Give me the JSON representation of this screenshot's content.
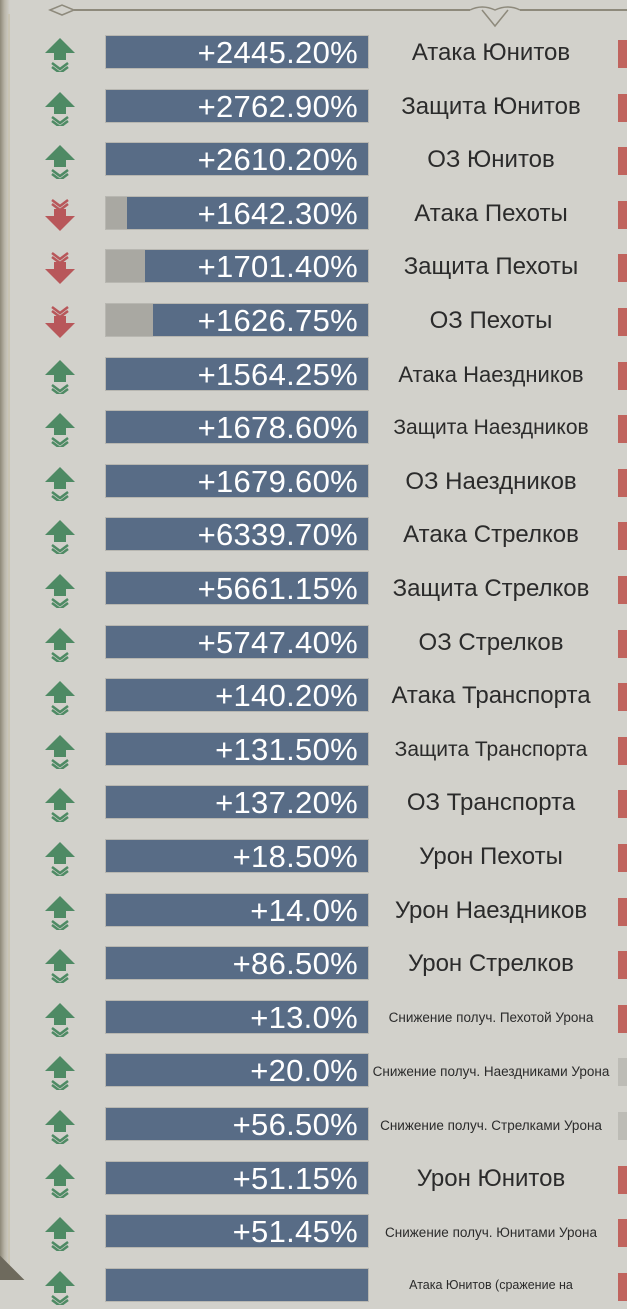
{
  "colors": {
    "background": "#d2d1cb",
    "bar_fill": "#586c86",
    "bar_track": "#a9a8a2",
    "arrow_up": "#4e8a64",
    "arrow_down": "#b8575a",
    "edge_marker": "#c0645e"
  },
  "stats": [
    {
      "value": "+2445.20%",
      "label": "Атака Юнитов",
      "trend": "up",
      "fill": 1.0
    },
    {
      "value": "+2762.90%",
      "label": "Защита Юнитов",
      "trend": "up",
      "fill": 1.0
    },
    {
      "value": "+2610.20%",
      "label": "ОЗ Юнитов",
      "trend": "up",
      "fill": 1.0
    },
    {
      "value": "+1642.30%",
      "label": "Атака Пехоты",
      "trend": "down",
      "fill": 0.92
    },
    {
      "value": "+1701.40%",
      "label": "Защита Пехоты",
      "trend": "down",
      "fill": 0.85
    },
    {
      "value": "+1626.75%",
      "label": "ОЗ Пехоты",
      "trend": "down",
      "fill": 0.82
    },
    {
      "value": "+1564.25%",
      "label": "Атака Наездников",
      "trend": "up",
      "fill": 1.0
    },
    {
      "value": "+1678.60%",
      "label": "Защита Наездников",
      "trend": "up",
      "fill": 1.0
    },
    {
      "value": "+1679.60%",
      "label": "ОЗ Наездников",
      "trend": "up",
      "fill": 1.0
    },
    {
      "value": "+6339.70%",
      "label": "Атака Стрелков",
      "trend": "up",
      "fill": 1.0
    },
    {
      "value": "+5661.15%",
      "label": "Защита Стрелков",
      "trend": "up",
      "fill": 1.0
    },
    {
      "value": "+5747.40%",
      "label": "ОЗ Стрелков",
      "trend": "up",
      "fill": 1.0
    },
    {
      "value": "+140.20%",
      "label": "Атака Транспорта",
      "trend": "up",
      "fill": 1.0
    },
    {
      "value": "+131.50%",
      "label": "Защита Транспорта",
      "trend": "up",
      "fill": 1.0
    },
    {
      "value": "+137.20%",
      "label": "ОЗ Транспорта",
      "trend": "up",
      "fill": 1.0
    },
    {
      "value": "+18.50%",
      "label": "Урон Пехоты",
      "trend": "up",
      "fill": 1.0
    },
    {
      "value": "+14.0%",
      "label": "Урон Наездников",
      "trend": "up",
      "fill": 1.0
    },
    {
      "value": "+86.50%",
      "label": "Урон Стрелков",
      "trend": "up",
      "fill": 1.0
    },
    {
      "value": "+13.0%",
      "label": "Снижение получ. Пехотой Урона",
      "trend": "up",
      "fill": 1.0
    },
    {
      "value": "+20.0%",
      "label": "Снижение получ. Наездниками Урона",
      "trend": "up",
      "fill": 1.0
    },
    {
      "value": "+56.50%",
      "label": "Снижение получ. Стрелками Урона",
      "trend": "up",
      "fill": 1.0
    },
    {
      "value": "+51.15%",
      "label": "Урон Юнитов",
      "trend": "up",
      "fill": 1.0
    },
    {
      "value": "+51.45%",
      "label": "Снижение получ. Юнитами Урона",
      "trend": "up",
      "fill": 1.0
    },
    {
      "value": "",
      "label": "Атака Юнитов (сражение на",
      "trend": "up",
      "fill": 1.0
    }
  ]
}
